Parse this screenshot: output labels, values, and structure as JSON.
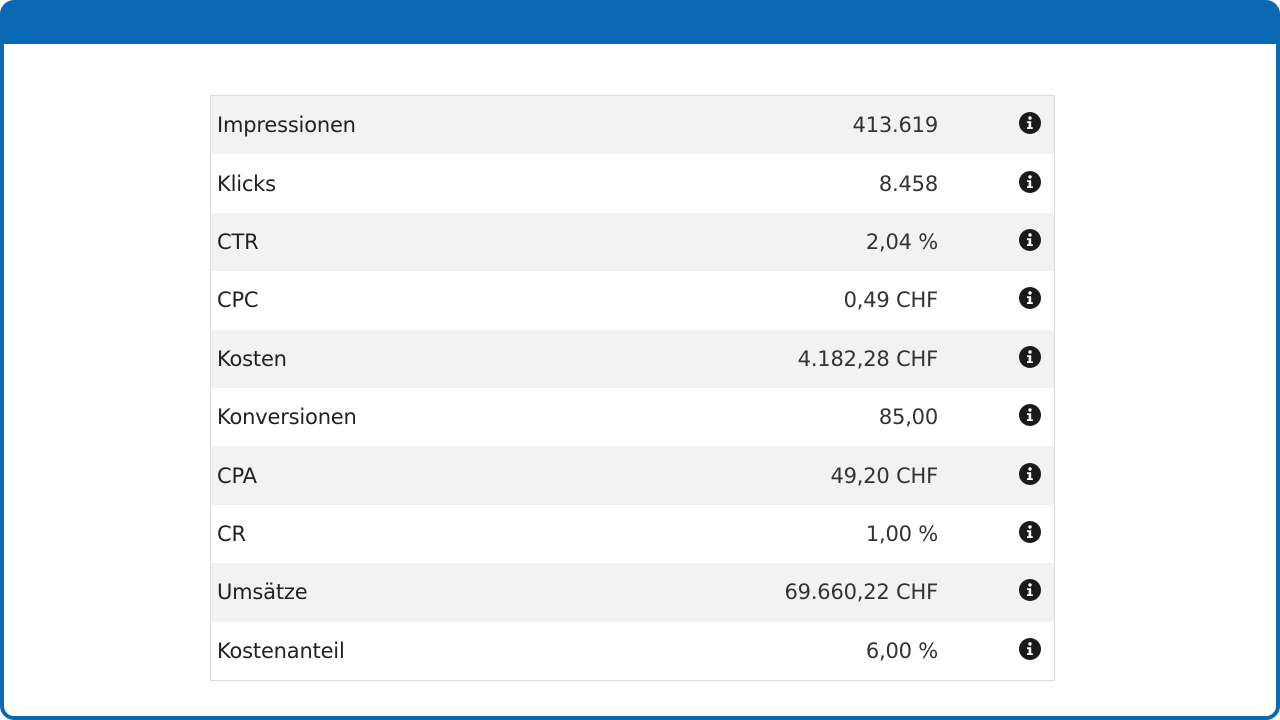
{
  "rows": [
    {
      "label": "Impressionen",
      "value": "413.619",
      "icon": "info-icon"
    },
    {
      "label": "Klicks",
      "value": "8.458",
      "icon": "info-icon"
    },
    {
      "label": "CTR",
      "value": "2,04 %",
      "icon": "info-icon"
    },
    {
      "label": "CPC",
      "value": "0,49 CHF",
      "icon": "info-icon"
    },
    {
      "label": "Kosten",
      "value": "4.182,28 CHF",
      "icon": "info-icon"
    },
    {
      "label": "Konversionen",
      "value": "85,00",
      "icon": "info-icon"
    },
    {
      "label": "CPA",
      "value": "49,20 CHF",
      "icon": "info-icon"
    },
    {
      "label": "CR",
      "value": "1,00 %",
      "icon": "info-icon"
    },
    {
      "label": "Umsätze",
      "value": "69.660,22 CHF",
      "icon": "info-icon"
    },
    {
      "label": "Kostenanteil",
      "value": "6,00 %",
      "icon": "info-icon"
    }
  ],
  "colors": {
    "frame": "#0b69b4",
    "row_alt": "#f2f2f2",
    "text": "#222222",
    "icon": "#1a1a1a"
  }
}
